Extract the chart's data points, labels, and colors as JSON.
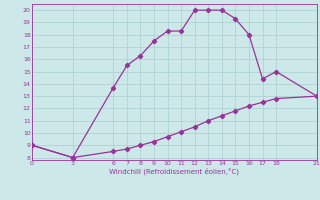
{
  "xlabel": "Windchill (Refroidissement éolien,°C)",
  "line1_x": [
    0,
    3,
    6,
    7,
    8,
    9,
    10,
    11,
    12,
    13,
    14,
    15,
    16,
    17,
    18,
    21
  ],
  "line1_y": [
    9,
    8,
    13.7,
    15.5,
    16.3,
    17.5,
    18.3,
    18.3,
    20,
    20,
    20,
    19.3,
    18,
    14.4,
    15,
    13
  ],
  "line2_x": [
    0,
    3,
    6,
    7,
    8,
    9,
    10,
    11,
    12,
    13,
    14,
    15,
    16,
    17,
    18,
    21
  ],
  "line2_y": [
    9,
    8,
    8.5,
    8.7,
    9.0,
    9.3,
    9.7,
    10.1,
    10.5,
    11.0,
    11.4,
    11.8,
    12.2,
    12.5,
    12.8,
    13
  ],
  "color": "#993399",
  "background_color": "#cce8e8",
  "xlim": [
    0,
    21
  ],
  "ylim": [
    7.8,
    20.5
  ],
  "xticks": [
    0,
    3,
    6,
    7,
    8,
    9,
    10,
    11,
    12,
    13,
    14,
    15,
    16,
    17,
    18,
    21
  ],
  "yticks": [
    8,
    9,
    10,
    11,
    12,
    13,
    14,
    15,
    16,
    17,
    18,
    19,
    20
  ],
  "grid_color": "#aacece",
  "marker": "D",
  "markersize": 2.2,
  "linewidth": 0.9
}
